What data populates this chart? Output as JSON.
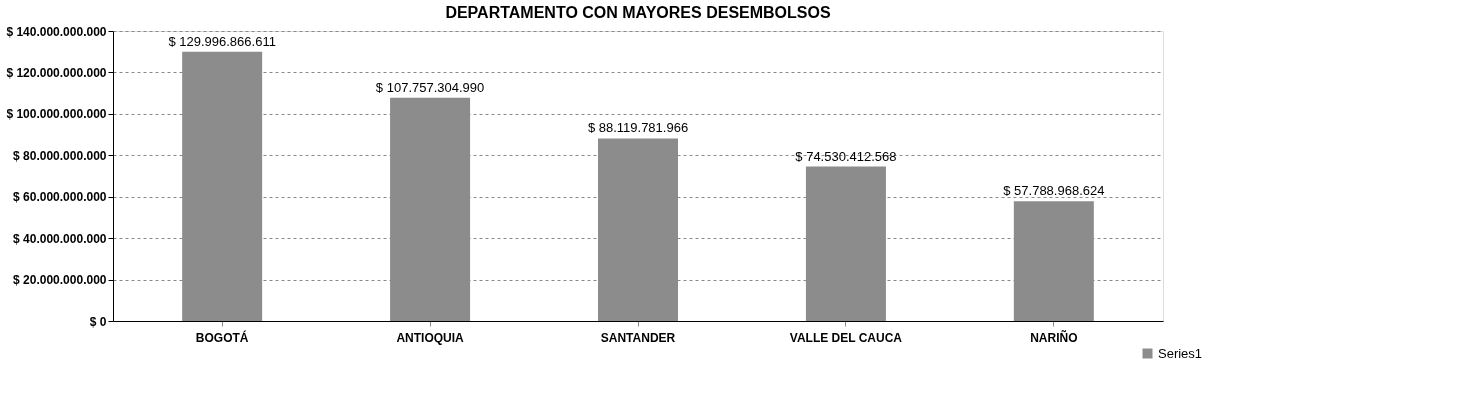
{
  "chart_data": {
    "type": "bar",
    "title": "DEPARTAMENTO CON MAYORES DESEMBOLSOS",
    "categories": [
      "BOGOTÁ",
      "ANTIOQUIA",
      "SANTANDER",
      "VALLE DEL CAUCA",
      "NARIÑO"
    ],
    "series": [
      {
        "name": "Series1",
        "color": "#8c8c8c",
        "values": [
          129996866611,
          107757304990,
          88119781966,
          74530412568,
          57788968624
        ],
        "value_labels": [
          "$ 129.996.866.611",
          "$ 107.757.304.990",
          "$ 88.119.781.966",
          "$ 74.530.412.568",
          "$ 57.788.968.624"
        ]
      }
    ],
    "ylim": [
      0,
      140000000000
    ],
    "yticks": [
      {
        "value": 0,
        "label": "$ 0"
      },
      {
        "value": 20000000000,
        "label": "$ 20.000.000.000"
      },
      {
        "value": 40000000000,
        "label": "$ 40.000.000.000"
      },
      {
        "value": 60000000000,
        "label": "$ 60.000.000.000"
      },
      {
        "value": 80000000000,
        "label": "$ 80.000.000.000"
      },
      {
        "value": 100000000000,
        "label": "$ 100.000.000.000"
      },
      {
        "value": 120000000000,
        "label": "$ 120.000.000.000"
      },
      {
        "value": 140000000000,
        "label": "$ 140.000.000.000"
      }
    ],
    "grid": "y",
    "legend": "bottom right"
  }
}
